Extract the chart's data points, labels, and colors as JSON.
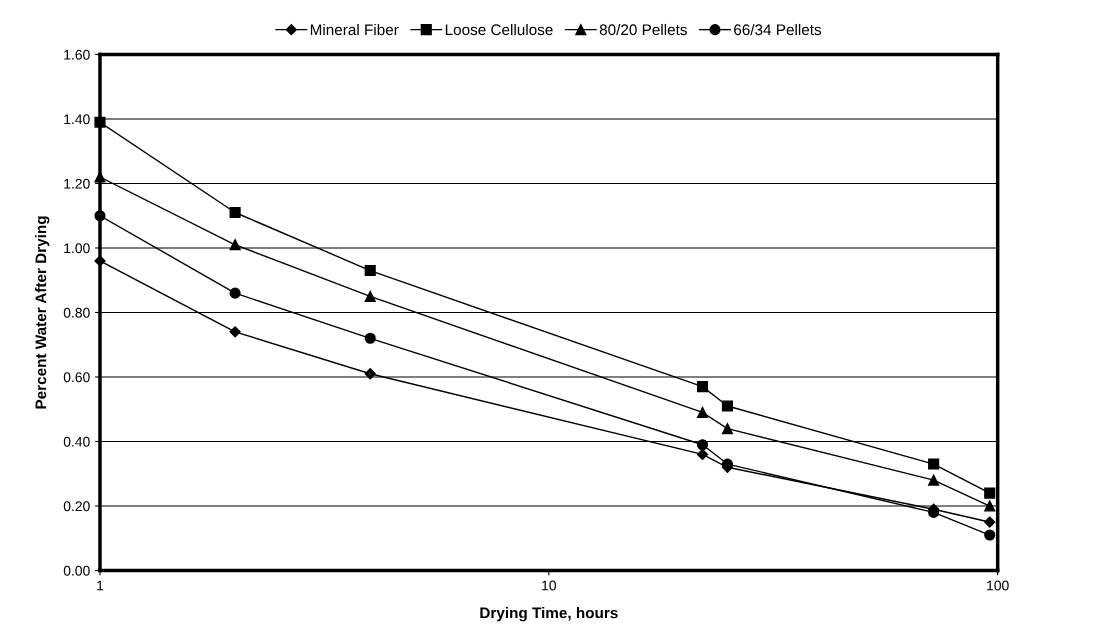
{
  "chart_data": {
    "type": "line",
    "xlabel": "Drying Time, hours",
    "ylabel": "Percent Water After Drying",
    "x": [
      1,
      2,
      4,
      22,
      25,
      72,
      96
    ],
    "log": "x",
    "xlim": [
      1,
      100
    ],
    "xticks": [
      1,
      10,
      100
    ],
    "ylim": [
      0,
      1.6
    ],
    "yticks": [
      {
        "value": 0,
        "label": "0.00"
      },
      {
        "value": 0.2,
        "label": "0.20"
      },
      {
        "value": 0.4,
        "label": "0.40"
      },
      {
        "value": 0.6,
        "label": "0.60"
      },
      {
        "value": 0.8,
        "label": "0.80"
      },
      {
        "value": 1.0,
        "label": "1.00"
      },
      {
        "value": 1.2,
        "label": "1.20"
      },
      {
        "value": 1.4,
        "label": "1.40"
      },
      {
        "value": 1.6,
        "label": "1.60"
      }
    ],
    "grid": "y",
    "legend": "top",
    "line_style": "solid",
    "series": [
      {
        "name": "Mineral Fiber",
        "color": "#000000",
        "marker": "diamond",
        "values": [
          0.96,
          0.74,
          0.61,
          0.36,
          0.32,
          0.19,
          0.15
        ]
      },
      {
        "name": "Loose Cellulose",
        "color": "#000000",
        "marker": "square",
        "values": [
          1.39,
          1.11,
          0.93,
          0.57,
          0.51,
          0.33,
          0.24
        ]
      },
      {
        "name": "80/20 Pellets",
        "color": "#000000",
        "marker": "triangle",
        "values": [
          1.22,
          1.01,
          0.85,
          0.49,
          0.44,
          0.28,
          0.2
        ]
      },
      {
        "name": "66/34 Pellets",
        "color": "#000000",
        "marker": "circle",
        "values": [
          1.1,
          0.86,
          0.72,
          0.39,
          0.33,
          0.18,
          0.11
        ]
      }
    ]
  }
}
